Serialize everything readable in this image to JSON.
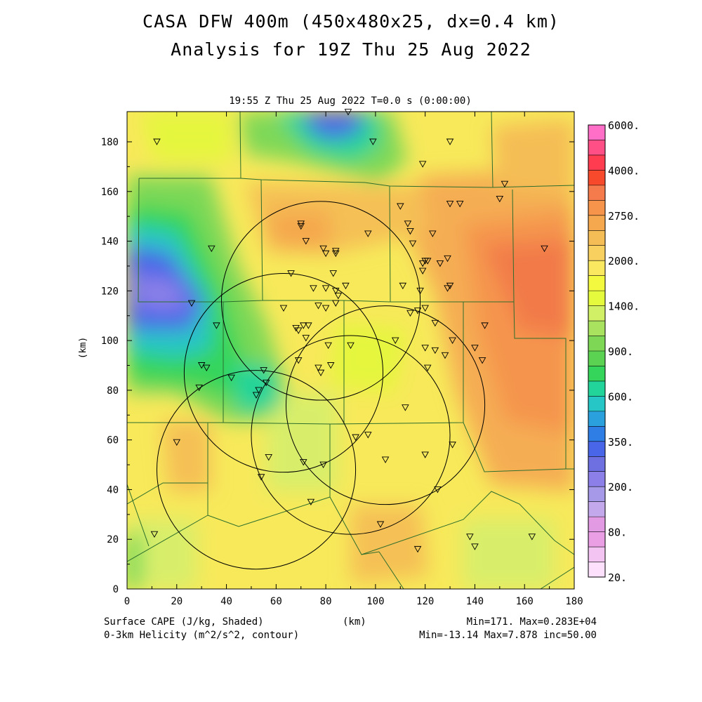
{
  "header": {
    "title_line1": "CASA DFW 400m (450x480x25, dx=0.4 km)",
    "title_line2": "Analysis for 19Z Thu 25 Aug 2022",
    "timestamp": "19:55 Z Thu 25 Aug 2022   T=0.0 s (0:00:00)"
  },
  "axes": {
    "x_unit": "(km)",
    "y_unit": "(km)",
    "x_ticks": [
      "0",
      "20",
      "40",
      "60",
      "80",
      "100",
      "120",
      "140",
      "160",
      "180"
    ],
    "y_ticks": [
      "0",
      "20",
      "40",
      "60",
      "80",
      "100",
      "120",
      "140",
      "160",
      "180"
    ],
    "range_km": [
      0,
      192
    ]
  },
  "colorbar": {
    "labels": [
      "6000.",
      "4000.",
      "2750.",
      "2000.",
      "1400.",
      "900.",
      "600.",
      "350.",
      "200.",
      "80.",
      "20."
    ],
    "colors": [
      "#ff6ec7",
      "#ff4f86",
      "#ff3c50",
      "#f74a2c",
      "#f57a4c",
      "#f5944a",
      "#f5a84e",
      "#f5bd55",
      "#f7d060",
      "#fae860",
      "#f3f93e",
      "#e5fa3c",
      "#d2f066",
      "#a8e25e",
      "#7ed856",
      "#5cd252",
      "#34d55a",
      "#22d49a",
      "#26c6c6",
      "#2aa0dc",
      "#2e7ee6",
      "#4a66e8",
      "#6e70e2",
      "#8c80e8",
      "#a69ae8",
      "#c4a8ec",
      "#e29ae2",
      "#ea9ee4",
      "#f3c4f2",
      "#fce0fc"
    ]
  },
  "footer": {
    "left_line1": "Surface CAPE (J/kg, Shaded)",
    "left_line2": "0-3km Helicity (m^2/s^2, contour)",
    "center": "(km)",
    "right_line1": "Min=171. Max=0.283E+04",
    "right_line2": "Min=-13.14 Max=7.878 inc=50.00"
  },
  "map": {
    "radar_rings_km": [
      {
        "cx": 78,
        "cy": 116,
        "r": 40
      },
      {
        "cx": 63,
        "cy": 87,
        "r": 40
      },
      {
        "cx": 104,
        "cy": 74,
        "r": 40
      },
      {
        "cx": 90,
        "cy": 62,
        "r": 40
      },
      {
        "cx": 52,
        "cy": 48,
        "r": 40
      }
    ],
    "stations_km": [
      [
        12,
        180
      ],
      [
        89,
        192
      ],
      [
        99,
        180
      ],
      [
        119,
        171
      ],
      [
        130,
        180
      ],
      [
        152,
        163
      ],
      [
        150,
        157
      ],
      [
        130,
        155
      ],
      [
        134,
        155
      ],
      [
        110,
        154
      ],
      [
        113,
        147
      ],
      [
        114,
        144
      ],
      [
        97,
        143
      ],
      [
        70,
        147
      ],
      [
        70,
        146
      ],
      [
        72,
        140
      ],
      [
        115,
        139
      ],
      [
        123,
        143
      ],
      [
        79,
        137
      ],
      [
        80,
        135
      ],
      [
        84,
        135
      ],
      [
        84,
        136
      ],
      [
        119,
        131
      ],
      [
        120,
        132
      ],
      [
        121,
        132
      ],
      [
        129,
        133
      ],
      [
        126,
        131
      ],
      [
        34,
        137
      ],
      [
        168,
        137
      ],
      [
        66,
        127
      ],
      [
        83,
        127
      ],
      [
        119,
        128
      ],
      [
        88,
        122
      ],
      [
        75,
        121
      ],
      [
        80,
        121
      ],
      [
        84,
        120
      ],
      [
        85,
        118
      ],
      [
        111,
        122
      ],
      [
        118,
        120
      ],
      [
        129,
        121
      ],
      [
        130,
        122
      ],
      [
        26,
        115
      ],
      [
        77,
        114
      ],
      [
        80,
        113
      ],
      [
        84,
        115
      ],
      [
        63,
        113
      ],
      [
        73,
        106
      ],
      [
        71,
        106
      ],
      [
        68,
        105
      ],
      [
        69,
        104
      ],
      [
        36,
        106
      ],
      [
        114,
        111
      ],
      [
        117,
        112
      ],
      [
        120,
        113
      ],
      [
        124,
        107
      ],
      [
        144,
        106
      ],
      [
        72,
        101
      ],
      [
        81,
        98
      ],
      [
        90,
        98
      ],
      [
        108,
        100
      ],
      [
        120,
        97
      ],
      [
        124,
        96
      ],
      [
        128,
        94
      ],
      [
        131,
        100
      ],
      [
        140,
        97
      ],
      [
        143,
        92
      ],
      [
        69,
        92
      ],
      [
        30,
        90
      ],
      [
        32,
        89
      ],
      [
        77,
        89
      ],
      [
        78,
        87
      ],
      [
        82,
        90
      ],
      [
        121,
        89
      ],
      [
        42,
        85
      ],
      [
        55,
        88
      ],
      [
        56,
        83
      ],
      [
        29,
        81
      ],
      [
        53,
        80
      ],
      [
        52,
        78
      ],
      [
        112,
        73
      ],
      [
        97,
        62
      ],
      [
        92,
        61
      ],
      [
        131,
        58
      ],
      [
        20,
        59
      ],
      [
        57,
        53
      ],
      [
        71,
        51
      ],
      [
        79,
        50
      ],
      [
        104,
        52
      ],
      [
        120,
        54
      ],
      [
        54,
        45
      ],
      [
        125,
        40
      ],
      [
        74,
        35
      ],
      [
        102,
        26
      ],
      [
        11,
        22
      ],
      [
        138,
        21
      ],
      [
        163,
        21
      ],
      [
        140,
        17
      ],
      [
        117,
        16
      ]
    ]
  }
}
